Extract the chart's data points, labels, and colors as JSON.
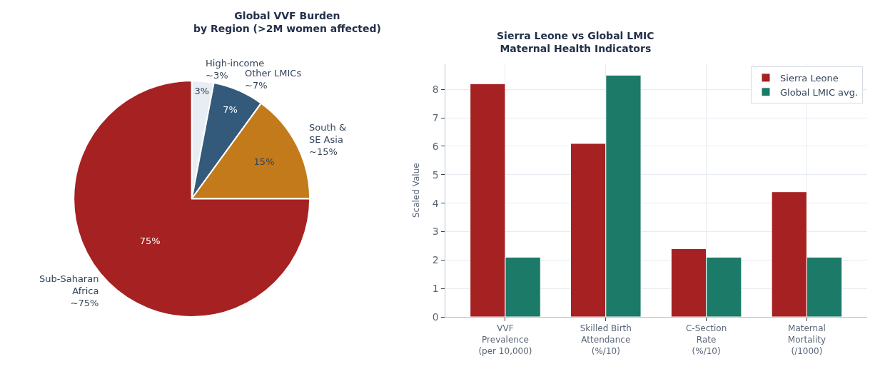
{
  "chart_data": [
    {
      "type": "pie",
      "title": "Global VVF Burden\nby Region (>2M women affected)",
      "categories": [
        "High-income\n~3%",
        "Other LMICs\n~7%",
        "South &\nSE Asia\n~15%",
        "Sub-Saharan\nAfrica\n~75%"
      ],
      "values": [
        3,
        7,
        15,
        75
      ],
      "value_labels": [
        "3%",
        "7%",
        "15%",
        "75%"
      ],
      "colors": [
        "#e8edf3",
        "#345a7b",
        "#c27a1a",
        "#a52122"
      ]
    },
    {
      "type": "bar",
      "title": "Sierra Leone vs Global LMIC\nMaternal Health Indicators",
      "categories": [
        "VVF\nPrevalence\n(per 10,000)",
        "Skilled Birth\nAttendance\n(%/10)",
        "C-Section\nRate\n(%/10)",
        "Maternal\nMortality\n(/1000)"
      ],
      "series": [
        {
          "name": "Sierra Leone",
          "color": "#a52122",
          "values": [
            8.2,
            6.1,
            2.4,
            4.4
          ]
        },
        {
          "name": "Global LMIC avg.",
          "color": "#1b7a68",
          "values": [
            2.1,
            8.5,
            2.1,
            2.1
          ]
        }
      ],
      "ylabel": "Scaled Value",
      "ylim": [
        0,
        8.9
      ],
      "yticks": [
        0,
        1,
        2,
        3,
        4,
        5,
        6,
        7,
        8
      ],
      "grid": true,
      "legend": "top right"
    }
  ]
}
